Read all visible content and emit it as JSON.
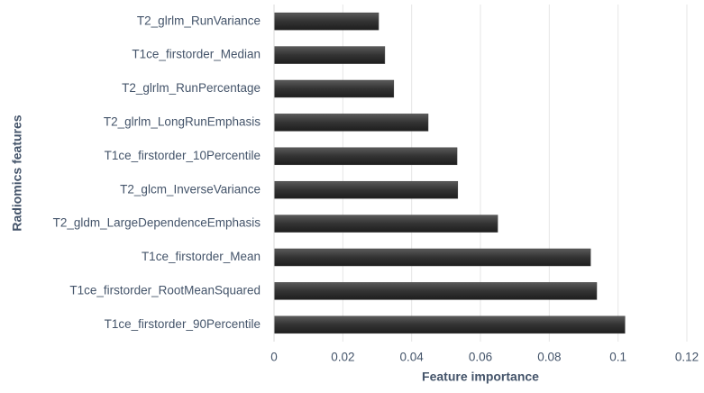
{
  "chart_data": {
    "type": "barh",
    "x_label": "Feature importance",
    "y_label": "Radiomics features",
    "categories": [
      "T2_glrlm_RunVariance",
      "T1ce_firstorder_Median",
      "T2_glrlm_RunPercentage",
      "T2_glrlm_LongRunEmphasis",
      "T1ce_firstorder_10Percentile",
      "T2_glcm_InverseVariance",
      "T2_gldm_LargeDependenceEmphasis",
      "T1ce_firstorder_Mean",
      "T1ce_firstorder_RootMeanSquared",
      "T1ce_firstorder_90Percentile"
    ],
    "values": [
      0.0304,
      0.0322,
      0.0348,
      0.0448,
      0.0532,
      0.0534,
      0.065,
      0.092,
      0.0938,
      0.102
    ],
    "color": "#404040",
    "xlim": [
      0,
      0.12
    ],
    "xticks": [
      0,
      0.02,
      0.04,
      0.06,
      0.08,
      0.1,
      0.12
    ],
    "grid": true
  }
}
